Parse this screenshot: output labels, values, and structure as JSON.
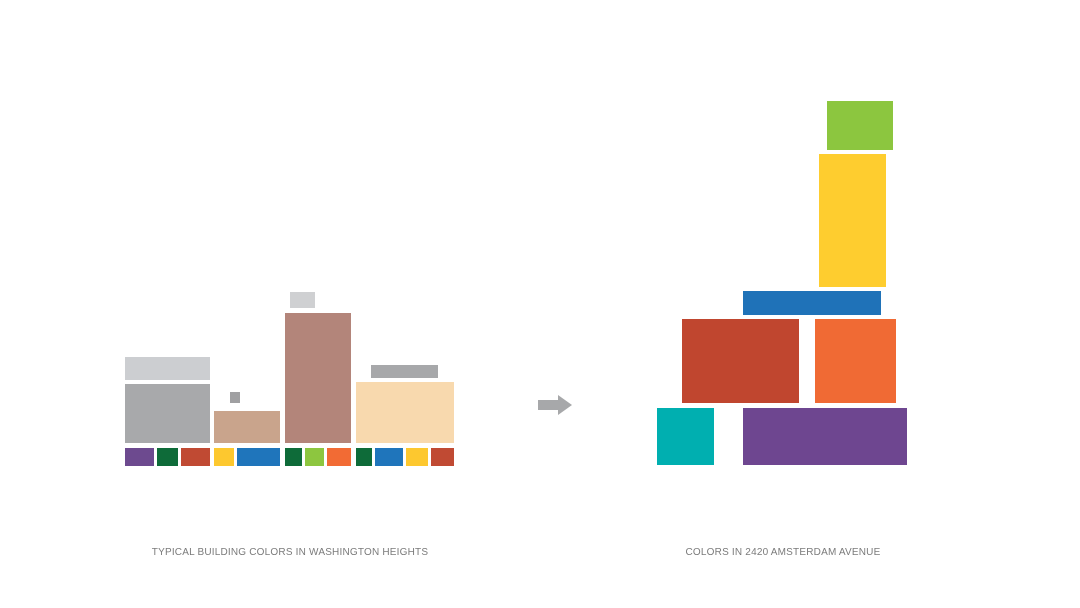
{
  "captions": {
    "left": "TYPICAL BUILDING COLORS IN WASHINGTON HEIGHTS",
    "right": "COLORS IN 2420 AMSTERDAM AVENUE"
  }
}
